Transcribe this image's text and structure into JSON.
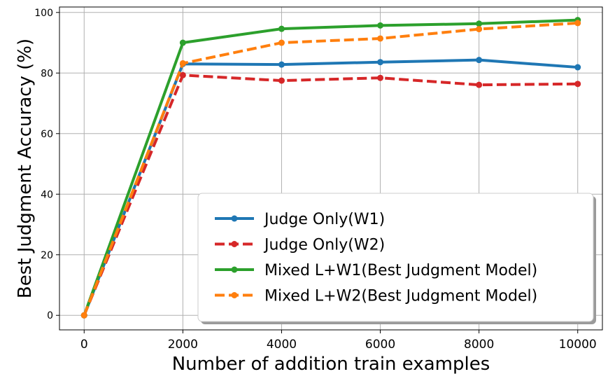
{
  "chart_data": {
    "type": "line",
    "title": "",
    "xlabel": "Number of addition train examples",
    "ylabel": "Best Judgment Accuracy (%)",
    "x": [
      0,
      2000,
      4000,
      6000,
      8000,
      10000
    ],
    "x_ticks": [
      0,
      2000,
      4000,
      6000,
      8000,
      10000
    ],
    "y_ticks": [
      0,
      20,
      40,
      60,
      80,
      100
    ],
    "x_tick_labels": [
      "0",
      "2000",
      "4000",
      "6000",
      "8000",
      "10000"
    ],
    "y_tick_labels": [
      "0",
      "20",
      "40",
      "60",
      "80",
      "100"
    ],
    "xlim": [
      -500,
      10500
    ],
    "ylim": [
      -4.8,
      101.8
    ],
    "grid": true,
    "legend_position": "lower-right",
    "series": [
      {
        "name": "Judge Only(W1)",
        "values": [
          0,
          83.0,
          82.8,
          83.6,
          84.3,
          81.9
        ],
        "color": "#1f77b4",
        "dashed": false
      },
      {
        "name": "Judge Only(W2)",
        "values": [
          0,
          79.3,
          77.5,
          78.4,
          76.1,
          76.4
        ],
        "color": "#d62728",
        "dashed": true
      },
      {
        "name": "Mixed L+W1(Best Judgment Model)",
        "values": [
          0,
          90.0,
          94.6,
          95.7,
          96.3,
          97.5
        ],
        "color": "#2ca02c",
        "dashed": false
      },
      {
        "name": "Mixed L+W2(Best Judgment Model)",
        "values": [
          0,
          83.2,
          90.0,
          91.4,
          94.5,
          96.5
        ],
        "color": "#ff7f0e",
        "dashed": true
      }
    ]
  }
}
